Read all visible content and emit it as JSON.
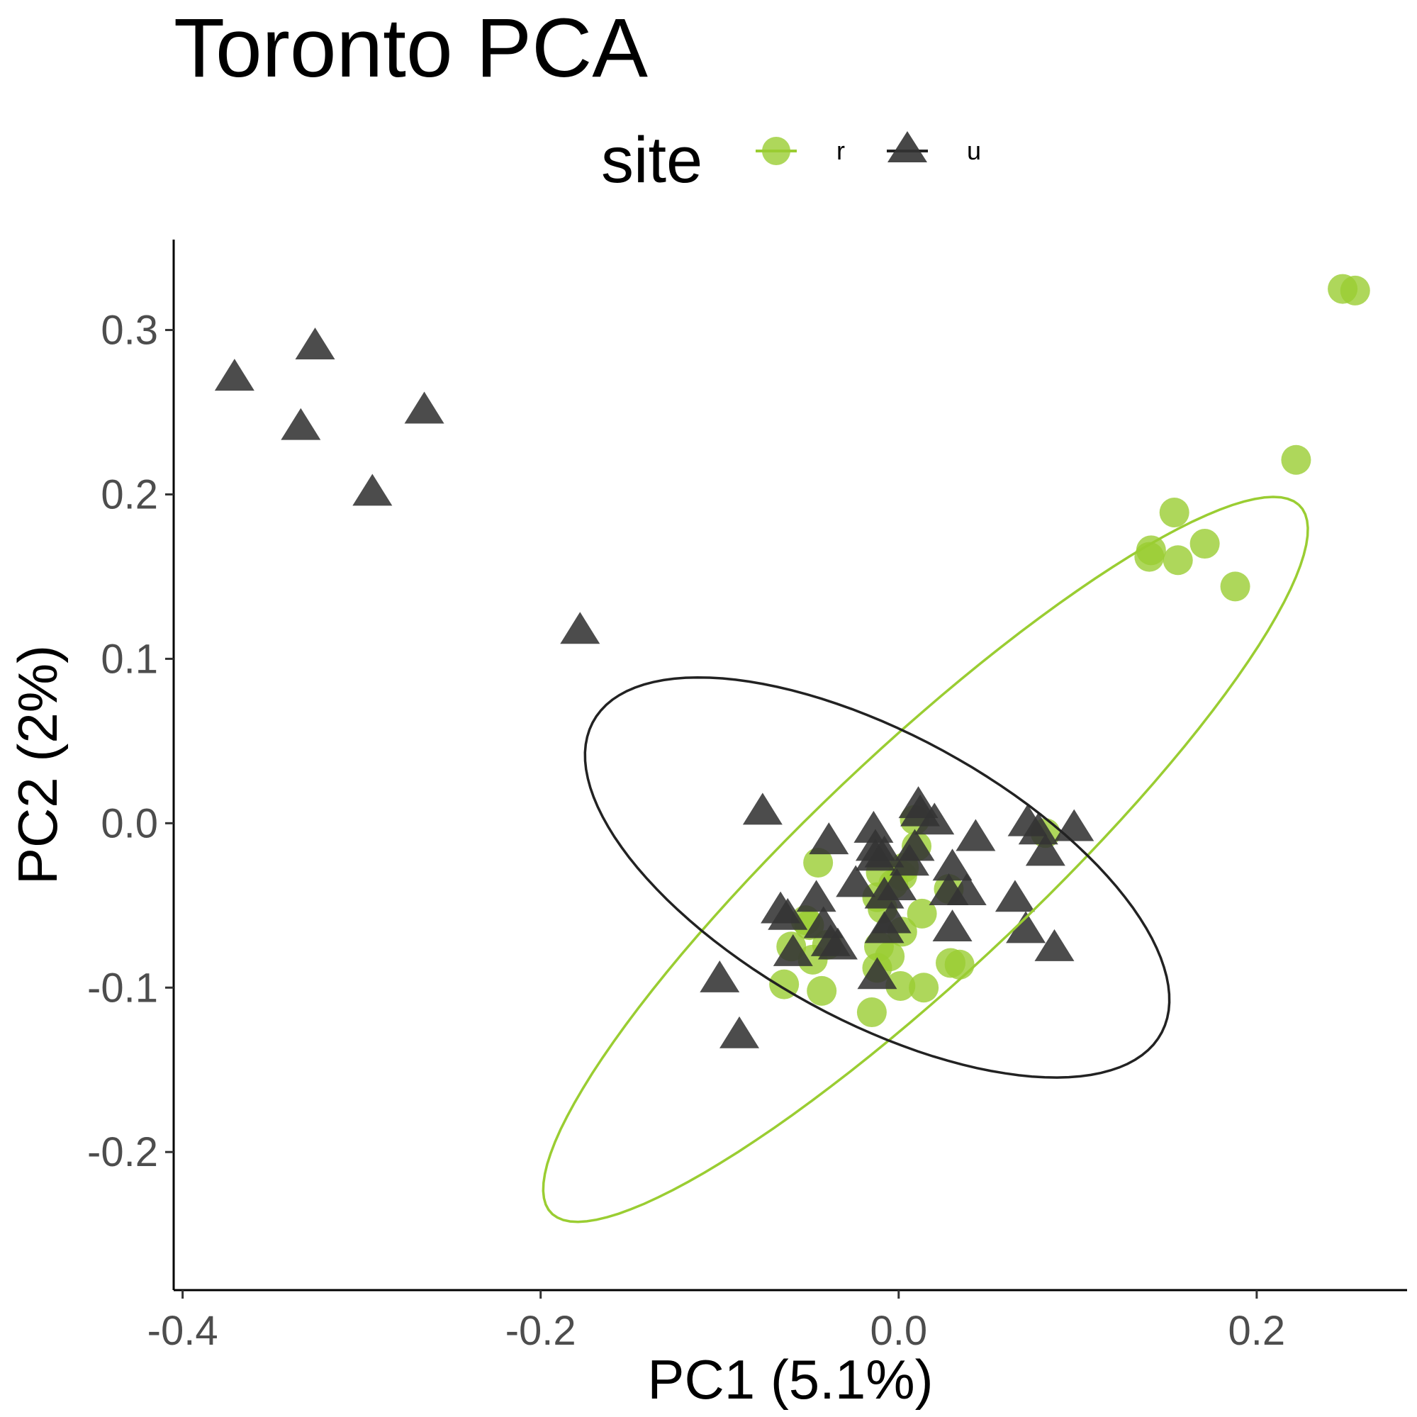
{
  "chart_data": {
    "type": "scatter",
    "title": "Toronto PCA",
    "xlabel": "PC1 (5.1%)",
    "ylabel": "PC2 (2%)",
    "xlim": [
      -0.405,
      0.284
    ],
    "ylim": [
      -0.284,
      0.355
    ],
    "x_ticks": [
      "-0.4",
      "-0.2",
      "0.0",
      "0.2"
    ],
    "y_ticks": [
      "-0.2",
      "-0.1",
      "0.0",
      "0.1",
      "0.2",
      "0.3"
    ],
    "grid": false,
    "legend": {
      "title": "site",
      "position": "top",
      "entries": [
        {
          "label": "r",
          "shape": "circle",
          "color": "#9ACD32"
        },
        {
          "label": "u",
          "shape": "triangle",
          "color": "#333333"
        }
      ]
    },
    "series": [
      {
        "name": "r",
        "shape": "circle",
        "color": "#9ACD32",
        "points": [
          [
            0.248,
            0.325
          ],
          [
            0.255,
            0.324
          ],
          [
            0.222,
            0.221
          ],
          [
            0.154,
            0.189
          ],
          [
            0.171,
            0.17
          ],
          [
            0.141,
            0.166
          ],
          [
            0.14,
            0.162
          ],
          [
            0.156,
            0.16
          ],
          [
            0.188,
            0.144
          ],
          [
            0.082,
            -0.006
          ],
          [
            0.009,
            0.002
          ],
          [
            0.01,
            -0.014
          ],
          [
            -0.045,
            -0.024
          ],
          [
            -0.01,
            -0.03
          ],
          [
            0.003,
            -0.027
          ],
          [
            0.002,
            -0.032
          ],
          [
            -0.003,
            -0.037
          ],
          [
            0.028,
            -0.04
          ],
          [
            -0.012,
            -0.045
          ],
          [
            -0.009,
            -0.052
          ],
          [
            0.013,
            -0.055
          ],
          [
            -0.052,
            -0.059
          ],
          [
            -0.05,
            -0.062
          ],
          [
            0.002,
            -0.066
          ],
          [
            -0.04,
            -0.074
          ],
          [
            -0.06,
            -0.075
          ],
          [
            -0.011,
            -0.075
          ],
          [
            -0.005,
            -0.081
          ],
          [
            -0.048,
            -0.083
          ],
          [
            0.029,
            -0.085
          ],
          [
            0.034,
            -0.086
          ],
          [
            -0.012,
            -0.088
          ],
          [
            -0.064,
            -0.098
          ],
          [
            0.001,
            -0.099
          ],
          [
            0.014,
            -0.1
          ],
          [
            -0.043,
            -0.102
          ],
          [
            -0.015,
            -0.115
          ]
        ]
      },
      {
        "name": "u",
        "shape": "triangle",
        "color": "#333333",
        "points": [
          [
            -0.326,
            0.289
          ],
          [
            -0.371,
            0.27
          ],
          [
            -0.334,
            0.24
          ],
          [
            -0.265,
            0.25
          ],
          [
            -0.294,
            0.2
          ],
          [
            -0.178,
            0.116
          ],
          [
            -0.076,
            0.006
          ],
          [
            0.011,
            0.01
          ],
          [
            0.012,
            0.005
          ],
          [
            0.02,
            0.0
          ],
          [
            0.072,
            -0.001
          ],
          [
            0.098,
            -0.004
          ],
          [
            0.078,
            -0.006
          ],
          [
            -0.014,
            -0.005
          ],
          [
            -0.039,
            -0.012
          ],
          [
            -0.013,
            -0.016
          ],
          [
            0.043,
            -0.01
          ],
          [
            0.009,
            -0.016
          ],
          [
            -0.008,
            -0.02
          ],
          [
            -0.013,
            -0.022
          ],
          [
            0.082,
            -0.019
          ],
          [
            0.006,
            -0.025
          ],
          [
            -0.024,
            -0.038
          ],
          [
            0.03,
            -0.028
          ],
          [
            0.028,
            -0.043
          ],
          [
            0.038,
            -0.043
          ],
          [
            -0.008,
            -0.045
          ],
          [
            -0.001,
            -0.04
          ],
          [
            0.065,
            -0.047
          ],
          [
            -0.046,
            -0.047
          ],
          [
            -0.066,
            -0.054
          ],
          [
            -0.062,
            -0.058
          ],
          [
            -0.042,
            -0.063
          ],
          [
            -0.004,
            -0.06
          ],
          [
            -0.008,
            -0.066
          ],
          [
            0.03,
            -0.065
          ],
          [
            0.071,
            -0.066
          ],
          [
            -0.038,
            -0.074
          ],
          [
            -0.034,
            -0.076
          ],
          [
            -0.059,
            -0.08
          ],
          [
            0.087,
            -0.077
          ],
          [
            -0.1,
            -0.096
          ],
          [
            -0.012,
            -0.094
          ],
          [
            -0.089,
            -0.13
          ]
        ]
      }
    ],
    "ellipses": [
      {
        "series": "r",
        "color": "#9ACD32",
        "center": [
          0.015,
          -0.022
        ],
        "semi_major": 0.3,
        "semi_minor": 0.065,
        "angle_deg": 46
      },
      {
        "series": "u",
        "color": "#222222",
        "center": [
          -0.012,
          -0.033
        ],
        "semi_major": 0.185,
        "semi_minor": 0.085,
        "angle_deg": -32
      }
    ]
  }
}
